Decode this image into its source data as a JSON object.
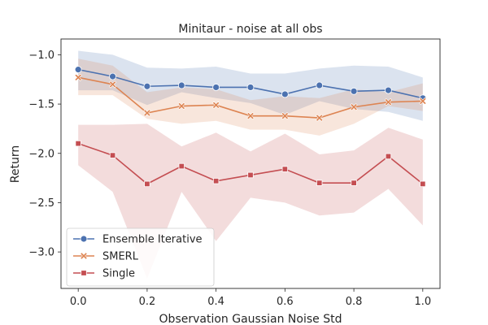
{
  "chart_data": {
    "type": "line",
    "title": "Minitaur - noise at all obs",
    "xlabel": "Observation Gaussian Noise Std",
    "ylabel": "Return",
    "x": [
      0.0,
      0.1,
      0.2,
      0.3,
      0.4,
      0.5,
      0.6,
      0.7,
      0.8,
      0.9,
      1.0
    ],
    "xlim": [
      -0.05,
      1.05
    ],
    "ylim": [
      -3.37,
      -0.84
    ],
    "xticks": [
      0.0,
      0.2,
      0.4,
      0.6,
      0.8,
      1.0
    ],
    "xtick_labels": [
      "0.0",
      "0.2",
      "0.4",
      "0.6",
      "0.8",
      "1.0"
    ],
    "yticks": [
      -1.0,
      -1.5,
      -2.0,
      -2.5,
      -3.0
    ],
    "ytick_labels": [
      "−1.0",
      "−1.5",
      "−2.0",
      "−2.5",
      "−3.0"
    ],
    "grid": false,
    "legend_position": "bottom-left",
    "series": [
      {
        "name": "Ensemble Iterative",
        "color": "#4c72b0",
        "marker": "circle",
        "values": [
          -1.15,
          -1.22,
          -1.32,
          -1.31,
          -1.33,
          -1.33,
          -1.4,
          -1.31,
          -1.37,
          -1.36,
          -1.44
        ],
        "band_upper": [
          -0.96,
          -1.0,
          -1.13,
          -1.14,
          -1.12,
          -1.19,
          -1.19,
          -1.14,
          -1.11,
          -1.12,
          -1.23
        ],
        "band_lower": [
          -1.36,
          -1.36,
          -1.51,
          -1.38,
          -1.44,
          -1.49,
          -1.61,
          -1.47,
          -1.55,
          -1.58,
          -1.67
        ]
      },
      {
        "name": "SMERL",
        "color": "#dd8452",
        "marker": "x",
        "values": [
          -1.23,
          -1.3,
          -1.59,
          -1.52,
          -1.51,
          -1.62,
          -1.62,
          -1.64,
          -1.53,
          -1.48,
          -1.47
        ],
        "band_upper": [
          -1.04,
          -1.11,
          -1.38,
          -1.33,
          -1.35,
          -1.46,
          -1.42,
          -1.44,
          -1.35,
          -1.38,
          -1.29
        ],
        "band_lower": [
          -1.41,
          -1.41,
          -1.65,
          -1.7,
          -1.67,
          -1.76,
          -1.76,
          -1.82,
          -1.7,
          -1.52,
          -1.57
        ]
      },
      {
        "name": "Single",
        "color": "#c44e52",
        "marker": "square",
        "values": [
          -1.9,
          -2.02,
          -2.31,
          -2.13,
          -2.28,
          -2.22,
          -2.16,
          -2.3,
          -2.3,
          -2.03,
          -2.31
        ],
        "band_upper": [
          -1.71,
          -1.71,
          -1.7,
          -1.93,
          -1.79,
          -1.98,
          -1.8,
          -2.01,
          -1.97,
          -1.74,
          -1.86
        ],
        "band_lower": [
          -2.12,
          -2.39,
          -3.27,
          -2.39,
          -2.89,
          -2.45,
          -2.5,
          -2.63,
          -2.6,
          -2.36,
          -2.73
        ]
      }
    ]
  }
}
